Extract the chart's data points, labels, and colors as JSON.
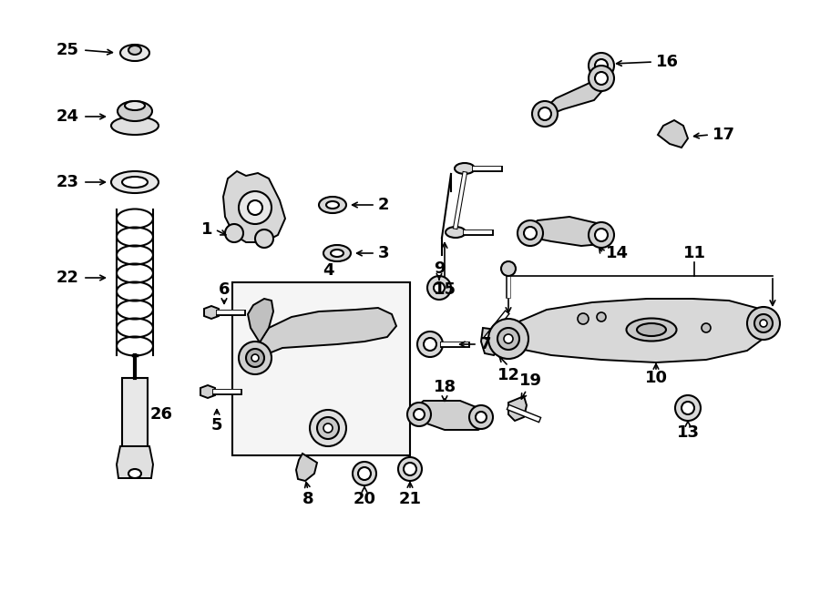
{
  "bg_color": "#ffffff",
  "line_color": "#000000",
  "fig_width": 9.0,
  "fig_height": 6.61,
  "dpi": 100,
  "label_fontsize": 13,
  "lw": 1.4
}
